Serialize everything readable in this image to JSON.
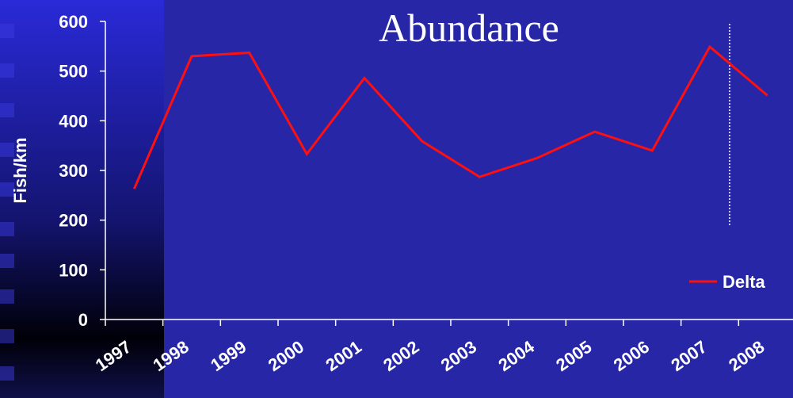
{
  "chart_data": {
    "type": "line",
    "title": "Abundance",
    "y_label": "Fish/km",
    "categories": [
      "1997",
      "1998",
      "1999",
      "2000",
      "2001",
      "2002",
      "2003",
      "2004",
      "2005",
      "2006",
      "2007",
      "2008"
    ],
    "series": [
      {
        "name": "Delta",
        "color": "#ff1010",
        "values": [
          263,
          530,
          537,
          333,
          486,
          359,
          287,
          325,
          378,
          340,
          549,
          451
        ]
      }
    ],
    "ylim": [
      0,
      600
    ],
    "yticks": [
      0,
      100,
      200,
      300,
      400,
      500,
      600
    ],
    "legend": "lower right"
  }
}
